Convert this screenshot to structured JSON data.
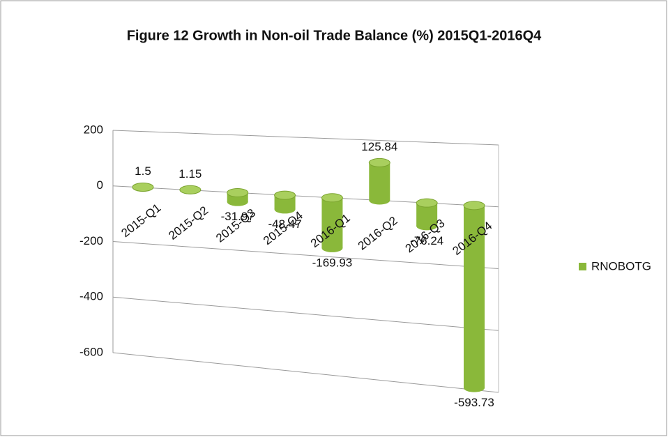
{
  "chart_data": {
    "type": "bar3d",
    "title": "Figure 12  Growth in Non-oil Trade Balance (%) 2015Q1-2016Q4",
    "categories": [
      "2015-Q1",
      "2015-Q2",
      "2015-Q3",
      "2015-Q4",
      "2016-Q1",
      "2016-Q2",
      "2016-Q3",
      "2016-Q4"
    ],
    "series": [
      {
        "name": "RNOBOTG",
        "color": "#8ab83a",
        "values": [
          1.5,
          1.15,
          -31.97,
          -48.47,
          -169.93,
          125.84,
          -76.24,
          -593.73
        ]
      }
    ],
    "ylim": [
      -600,
      200
    ],
    "yticks": [
      -600,
      -400,
      -200,
      0,
      200
    ],
    "grid": true,
    "legend": "right"
  }
}
